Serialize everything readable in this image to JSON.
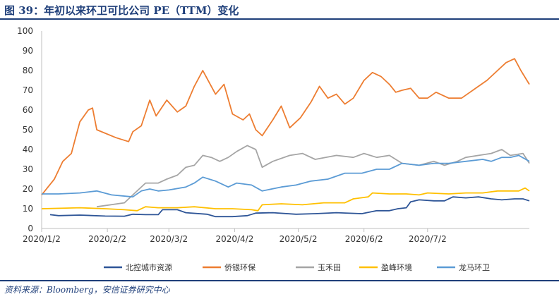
{
  "title": "图 39：年初以来环卫可比公司 PE（TTM）变化",
  "source": "资料来源：Bloomberg，安信证券研究中心",
  "chart_data": {
    "type": "line",
    "ylim": [
      0,
      100
    ],
    "yticks": [
      0,
      10,
      20,
      30,
      40,
      50,
      60,
      70,
      80,
      90,
      100
    ],
    "x_range": [
      "2020/1/2",
      "2020/8/19"
    ],
    "xticks": [
      "2020/1/2",
      "2020/2/2",
      "2020/3/2",
      "2020/4/2",
      "2020/5/2",
      "2020/6/2",
      "2020/7/2"
    ],
    "grid": false,
    "legend_position": "bottom",
    "series": [
      {
        "name": "北控城市资源",
        "color": "#2e5597",
        "points": [
          [
            "2020/1/6",
            7
          ],
          [
            "2020/1/10",
            6.5
          ],
          [
            "2020/1/20",
            6.8
          ],
          [
            "2020/2/1",
            6.3
          ],
          [
            "2020/2/10",
            6.2
          ],
          [
            "2020/2/14",
            7.2
          ],
          [
            "2020/2/20",
            7
          ],
          [
            "2020/2/26",
            7
          ],
          [
            "2020/2/28",
            9.5
          ],
          [
            "2020/3/6",
            9.5
          ],
          [
            "2020/3/10",
            8
          ],
          [
            "2020/3/20",
            7.2
          ],
          [
            "2020/3/24",
            6
          ],
          [
            "2020/4/1",
            6
          ],
          [
            "2020/4/8",
            6.5
          ],
          [
            "2020/4/12",
            7.8
          ],
          [
            "2020/4/20",
            8
          ],
          [
            "2020/5/1",
            7.2
          ],
          [
            "2020/5/10",
            7.5
          ],
          [
            "2020/5/20",
            8
          ],
          [
            "2020/6/1",
            7.5
          ],
          [
            "2020/6/8",
            9
          ],
          [
            "2020/6/14",
            9
          ],
          [
            "2020/6/18",
            10
          ],
          [
            "2020/6/22",
            10.5
          ],
          [
            "2020/6/24",
            13.5
          ],
          [
            "2020/6/28",
            14.5
          ],
          [
            "2020/7/5",
            14
          ],
          [
            "2020/7/10",
            14
          ],
          [
            "2020/7/14",
            16
          ],
          [
            "2020/7/20",
            15.5
          ],
          [
            "2020/7/26",
            16
          ],
          [
            "2020/8/1",
            15
          ],
          [
            "2020/8/6",
            14.5
          ],
          [
            "2020/8/12",
            15
          ],
          [
            "2020/8/16",
            15
          ],
          [
            "2020/8/19",
            14
          ]
        ]
      },
      {
        "name": "侨银环保",
        "color": "#ed7d31",
        "points": [
          [
            "2020/1/2",
            17
          ],
          [
            "2020/1/8",
            25
          ],
          [
            "2020/1/12",
            34
          ],
          [
            "2020/1/16",
            38
          ],
          [
            "2020/1/20",
            54
          ],
          [
            "2020/1/24",
            60
          ],
          [
            "2020/1/26",
            61
          ],
          [
            "2020/1/28",
            50
          ],
          [
            "2020/2/6",
            46
          ],
          [
            "2020/2/12",
            44
          ],
          [
            "2020/2/14",
            49
          ],
          [
            "2020/2/18",
            52
          ],
          [
            "2020/2/22",
            65
          ],
          [
            "2020/2/25",
            57
          ],
          [
            "2020/3/1",
            65
          ],
          [
            "2020/3/6",
            59
          ],
          [
            "2020/3/10",
            62
          ],
          [
            "2020/3/14",
            72
          ],
          [
            "2020/3/18",
            80
          ],
          [
            "2020/3/20",
            76
          ],
          [
            "2020/3/24",
            68
          ],
          [
            "2020/3/28",
            73
          ],
          [
            "2020/4/1",
            58
          ],
          [
            "2020/4/6",
            55
          ],
          [
            "2020/4/9",
            58
          ],
          [
            "2020/4/12",
            50
          ],
          [
            "2020/4/15",
            47
          ],
          [
            "2020/4/20",
            55
          ],
          [
            "2020/4/24",
            62
          ],
          [
            "2020/4/28",
            51
          ],
          [
            "2020/5/3",
            56
          ],
          [
            "2020/5/8",
            64
          ],
          [
            "2020/5/12",
            72
          ],
          [
            "2020/5/16",
            66
          ],
          [
            "2020/5/20",
            68
          ],
          [
            "2020/5/24",
            63
          ],
          [
            "2020/5/28",
            66
          ],
          [
            "2020/6/2",
            75
          ],
          [
            "2020/6/6",
            79
          ],
          [
            "2020/6/10",
            77
          ],
          [
            "2020/6/14",
            73
          ],
          [
            "2020/6/17",
            69
          ],
          [
            "2020/6/20",
            70
          ],
          [
            "2020/6/24",
            71
          ],
          [
            "2020/6/28",
            66
          ],
          [
            "2020/7/2",
            66
          ],
          [
            "2020/7/6",
            69
          ],
          [
            "2020/7/12",
            66
          ],
          [
            "2020/7/18",
            66
          ],
          [
            "2020/7/22",
            69
          ],
          [
            "2020/7/26",
            72
          ],
          [
            "2020/7/30",
            75
          ],
          [
            "2020/8/4",
            80
          ],
          [
            "2020/8/8",
            84
          ],
          [
            "2020/8/12",
            86
          ],
          [
            "2020/8/15",
            80
          ],
          [
            "2020/8/19",
            73
          ]
        ]
      },
      {
        "name": "玉禾田",
        "color": "#a5a5a5",
        "points": [
          [
            "2020/1/28",
            11
          ],
          [
            "2020/2/10",
            13
          ],
          [
            "2020/2/14",
            17
          ],
          [
            "2020/2/20",
            23
          ],
          [
            "2020/2/26",
            23
          ],
          [
            "2020/3/1",
            25
          ],
          [
            "2020/3/6",
            27
          ],
          [
            "2020/3/10",
            31
          ],
          [
            "2020/3/14",
            32
          ],
          [
            "2020/3/18",
            37
          ],
          [
            "2020/3/22",
            36
          ],
          [
            "2020/3/26",
            34
          ],
          [
            "2020/3/30",
            36
          ],
          [
            "2020/4/3",
            39
          ],
          [
            "2020/4/8",
            42
          ],
          [
            "2020/4/12",
            40
          ],
          [
            "2020/4/15",
            31
          ],
          [
            "2020/4/20",
            34
          ],
          [
            "2020/4/28",
            37
          ],
          [
            "2020/5/4",
            38
          ],
          [
            "2020/5/10",
            35
          ],
          [
            "2020/5/20",
            37
          ],
          [
            "2020/5/28",
            36
          ],
          [
            "2020/6/2",
            38
          ],
          [
            "2020/6/8",
            36
          ],
          [
            "2020/6/14",
            37
          ],
          [
            "2020/6/20",
            33
          ],
          [
            "2020/6/28",
            32
          ],
          [
            "2020/7/5",
            34
          ],
          [
            "2020/7/10",
            32
          ],
          [
            "2020/7/16",
            34
          ],
          [
            "2020/7/20",
            36
          ],
          [
            "2020/7/26",
            37
          ],
          [
            "2020/8/1",
            38
          ],
          [
            "2020/8/6",
            40
          ],
          [
            "2020/8/10",
            37
          ],
          [
            "2020/8/16",
            38
          ],
          [
            "2020/8/19",
            33
          ]
        ]
      },
      {
        "name": "盈峰环境",
        "color": "#ffc000",
        "points": [
          [
            "2020/1/2",
            10
          ],
          [
            "2020/1/20",
            10.5
          ],
          [
            "2020/2/1",
            10
          ],
          [
            "2020/2/10",
            9.5
          ],
          [
            "2020/2/16",
            9
          ],
          [
            "2020/2/20",
            11
          ],
          [
            "2020/2/26",
            10.5
          ],
          [
            "2020/3/6",
            10.5
          ],
          [
            "2020/3/14",
            11
          ],
          [
            "2020/3/24",
            10
          ],
          [
            "2020/4/1",
            10
          ],
          [
            "2020/4/10",
            9.5
          ],
          [
            "2020/4/13",
            9
          ],
          [
            "2020/4/15",
            12
          ],
          [
            "2020/4/24",
            12.5
          ],
          [
            "2020/5/4",
            12
          ],
          [
            "2020/5/14",
            13
          ],
          [
            "2020/5/24",
            13
          ],
          [
            "2020/5/28",
            15
          ],
          [
            "2020/6/4",
            16
          ],
          [
            "2020/6/6",
            18
          ],
          [
            "2020/6/14",
            17.5
          ],
          [
            "2020/6/22",
            17.5
          ],
          [
            "2020/6/28",
            17
          ],
          [
            "2020/7/2",
            18
          ],
          [
            "2020/7/12",
            17.5
          ],
          [
            "2020/7/20",
            18
          ],
          [
            "2020/7/28",
            18
          ],
          [
            "2020/8/4",
            19
          ],
          [
            "2020/8/10",
            19
          ],
          [
            "2020/8/14",
            19
          ],
          [
            "2020/8/17",
            20.5
          ],
          [
            "2020/8/19",
            19
          ]
        ]
      },
      {
        "name": "龙马环卫",
        "color": "#5b9bd5",
        "points": [
          [
            "2020/1/2",
            17.5
          ],
          [
            "2020/1/10",
            17.5
          ],
          [
            "2020/1/20",
            18
          ],
          [
            "2020/1/28",
            19
          ],
          [
            "2020/2/4",
            17
          ],
          [
            "2020/2/14",
            16
          ],
          [
            "2020/2/18",
            19
          ],
          [
            "2020/2/22",
            20
          ],
          [
            "2020/2/26",
            19
          ],
          [
            "2020/3/2",
            19.5
          ],
          [
            "2020/3/10",
            21
          ],
          [
            "2020/3/14",
            23
          ],
          [
            "2020/3/18",
            26
          ],
          [
            "2020/3/24",
            24
          ],
          [
            "2020/3/30",
            21
          ],
          [
            "2020/4/3",
            23
          ],
          [
            "2020/4/10",
            22
          ],
          [
            "2020/4/15",
            19
          ],
          [
            "2020/4/24",
            21
          ],
          [
            "2020/5/1",
            22
          ],
          [
            "2020/5/8",
            24
          ],
          [
            "2020/5/16",
            25
          ],
          [
            "2020/5/24",
            28
          ],
          [
            "2020/6/1",
            28
          ],
          [
            "2020/6/8",
            30
          ],
          [
            "2020/6/14",
            30
          ],
          [
            "2020/6/20",
            33
          ],
          [
            "2020/6/28",
            32
          ],
          [
            "2020/7/5",
            33
          ],
          [
            "2020/7/12",
            33
          ],
          [
            "2020/7/20",
            34
          ],
          [
            "2020/7/28",
            35
          ],
          [
            "2020/8/1",
            34
          ],
          [
            "2020/8/6",
            36
          ],
          [
            "2020/8/10",
            36
          ],
          [
            "2020/8/14",
            37
          ],
          [
            "2020/8/19",
            34
          ]
        ]
      }
    ]
  }
}
